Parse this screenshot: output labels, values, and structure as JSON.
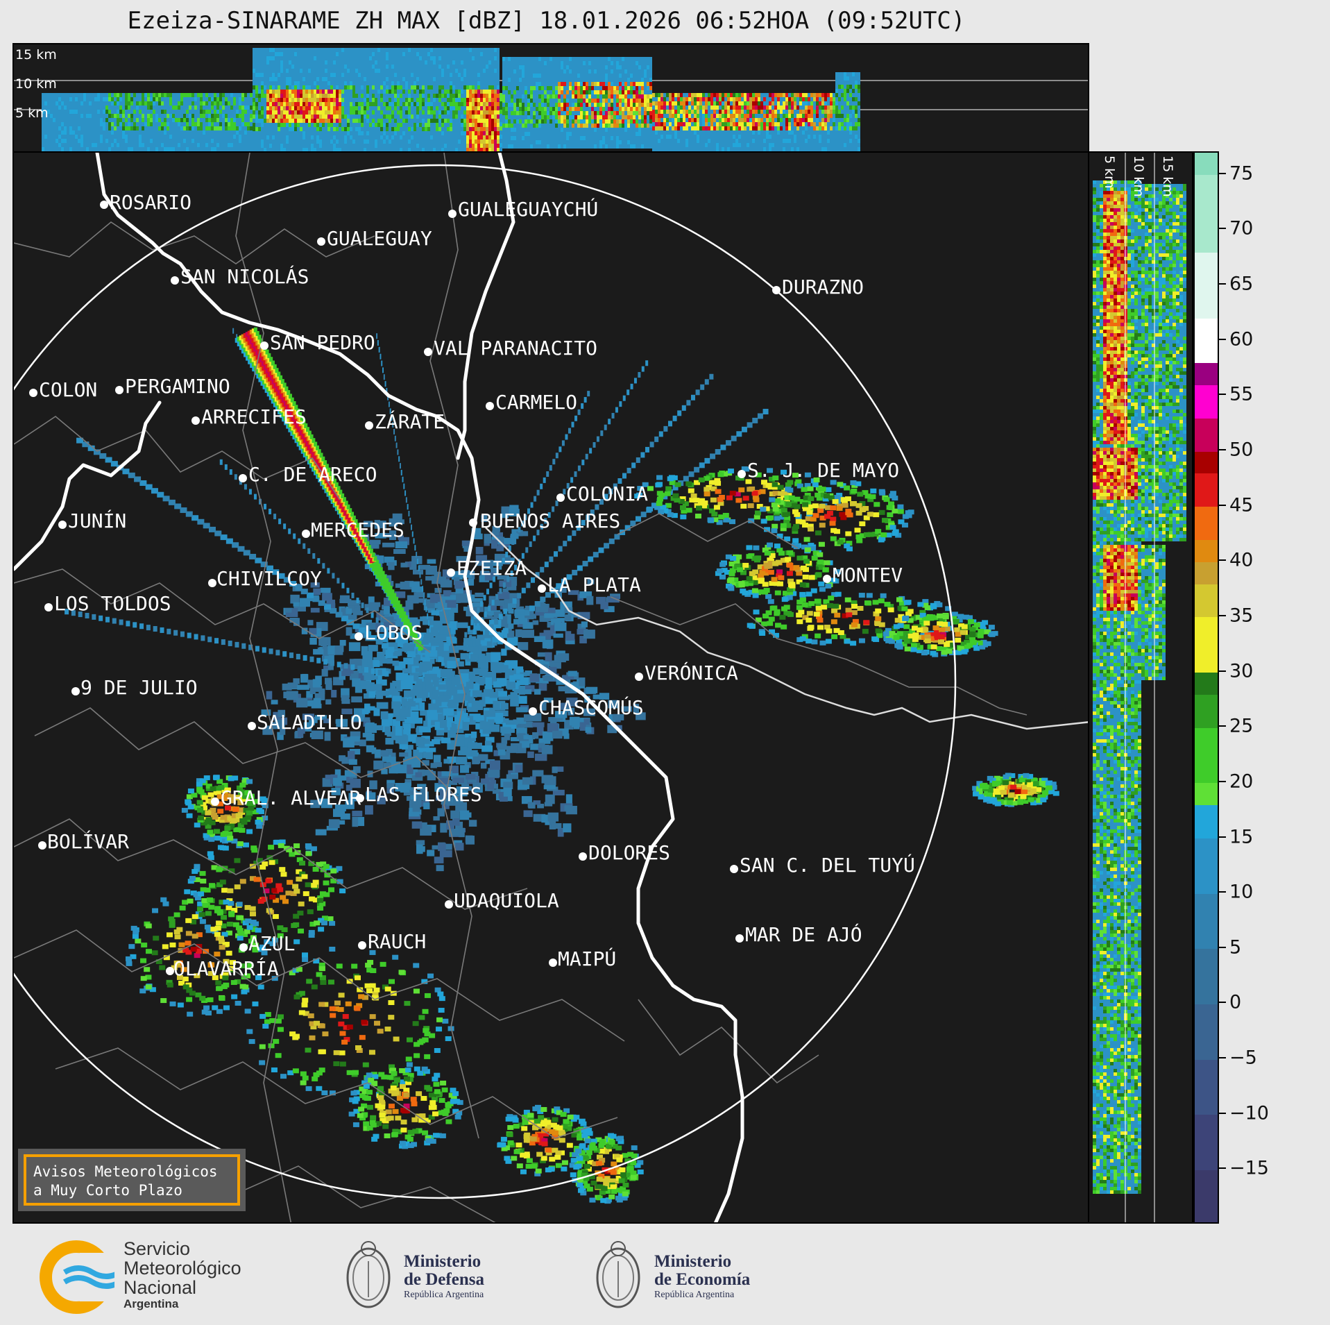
{
  "title": "Ezeiza-SINARAME ZH MAX [dBZ] 18.01.2026 06:52HOA (09:52UTC)",
  "top_panel": {
    "altitude_labels": [
      "15 km",
      "10 km",
      "5 km"
    ]
  },
  "side_panel": {
    "altitude_labels": [
      "5 km",
      "10 km",
      "15 km"
    ]
  },
  "colorbar": {
    "unit": "dBZ",
    "ticks": [
      "75",
      "70",
      "65",
      "60",
      "55",
      "50",
      "45",
      "40",
      "35",
      "30",
      "25",
      "20",
      "15",
      "10",
      "5",
      "0",
      "−5",
      "−10",
      "−15"
    ],
    "range": [
      -20,
      77
    ],
    "colors": {
      "-20": "#3b3a6a",
      "-15": "#3d4478",
      "-10": "#3d5486",
      "-5": "#3a6592",
      "0": "#35739d",
      "5": "#3182b0",
      "10": "#2c92c6",
      "15": "#22a6da",
      "18": "#5fe036",
      "20": "#3fcc2a",
      "25": "#2fa022",
      "28": "#237a1a",
      "30": "#f0ee2a",
      "35": "#d4c830",
      "38": "#c8a030",
      "40": "#e08a10",
      "42": "#f06a10",
      "45": "#e01818",
      "48": "#a80000",
      "50": "#c8005a",
      "53": "#ff00d0",
      "56": "#9a0080",
      "58": "#ffffff",
      "62": "#e0f6ee",
      "68": "#a8e8cc",
      "75": "#88dcbc"
    }
  },
  "map": {
    "radar_site": "EZEIZA",
    "cities": [
      {
        "name": "ROSARIO"
      },
      {
        "name": "GUALEGUAYCHÚ"
      },
      {
        "name": "GUALEGUAY"
      },
      {
        "name": "SAN NICOLÁS"
      },
      {
        "name": "DURAZNO"
      },
      {
        "name": "SAN PEDRO"
      },
      {
        "name": "VAL PARANACITO"
      },
      {
        "name": "COLON"
      },
      {
        "name": "PERGAMINO"
      },
      {
        "name": "CARMELO"
      },
      {
        "name": "ARRECIFES"
      },
      {
        "name": "ZÁRATE"
      },
      {
        "name": "S. J. DE MAYO"
      },
      {
        "name": "C. DE ARECO"
      },
      {
        "name": "COLONIA"
      },
      {
        "name": "JUNÍN"
      },
      {
        "name": "BUENOS AIRES"
      },
      {
        "name": "MERCEDES"
      },
      {
        "name": "EZEIZA"
      },
      {
        "name": "MONTEV"
      },
      {
        "name": "CHIVILCOY"
      },
      {
        "name": "LA PLATA"
      },
      {
        "name": "LOS TOLDOS"
      },
      {
        "name": "LOBOS"
      },
      {
        "name": "VERÓNICA"
      },
      {
        "name": "9 DE JULIO"
      },
      {
        "name": "CHASCOMÚS"
      },
      {
        "name": "SALADILLO"
      },
      {
        "name": "GRAL. ALVEAR"
      },
      {
        "name": "LAS FLORES"
      },
      {
        "name": "BOLÍVAR"
      },
      {
        "name": "DOLORES"
      },
      {
        "name": "SAN C. DEL TUYÚ"
      },
      {
        "name": "UDAQUIOLA"
      },
      {
        "name": "MAR DE AJÓ"
      },
      {
        "name": "AZUL"
      },
      {
        "name": "RAUCH"
      },
      {
        "name": "OLAVARRÍA"
      },
      {
        "name": "MAIPÚ"
      }
    ]
  },
  "warning_box": {
    "line1": "Avisos Meteorológicos",
    "line2": "a Muy Corto Plazo"
  },
  "footer": {
    "smn": {
      "line1": "Servicio",
      "line2": "Meteorológico",
      "line3": "Nacional",
      "line4": "Argentina"
    },
    "defensa": {
      "line1": "Ministerio",
      "line2": "de Defensa",
      "line3": "República Argentina"
    },
    "economia": {
      "line1": "Ministerio",
      "line2": "de Economía",
      "line3": "República Argentina"
    }
  }
}
